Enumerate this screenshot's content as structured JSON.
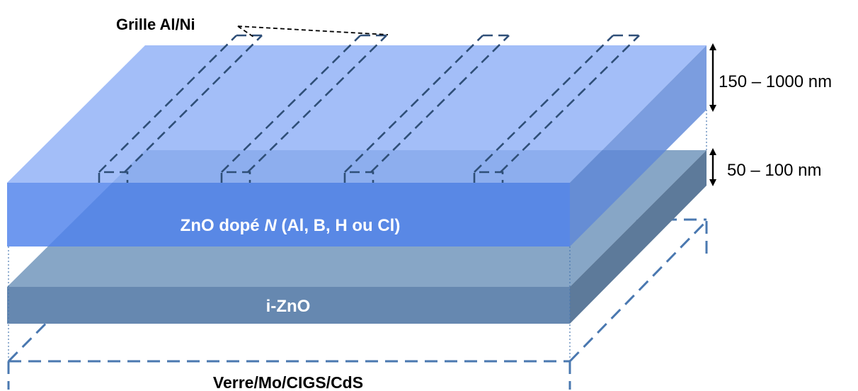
{
  "labels": {
    "grid": "Grille Al/Ni",
    "top_layer": "ZnO dopé ",
    "top_layer_dopant": "N",
    "top_layer_elements": " (Al, B, H ou Cl)",
    "middle_layer": "i-ZnO",
    "substrate": "Verre/Mo/CIGS/CdS",
    "top_thickness": "150 – 1000 nm",
    "middle_thickness": "50 – 100 nm"
  },
  "colors": {
    "top_layer_top": "#a0bcf8",
    "top_layer_front": "#6895f0",
    "top_layer_side": "#7b9ce0",
    "middle_layer_top": "#87a6c6",
    "middle_layer_front": "#6688b0",
    "middle_layer_side": "#5d7a9a",
    "dashes_dark": "#2f4f78",
    "dashes_substrate": "#4a78b0"
  }
}
